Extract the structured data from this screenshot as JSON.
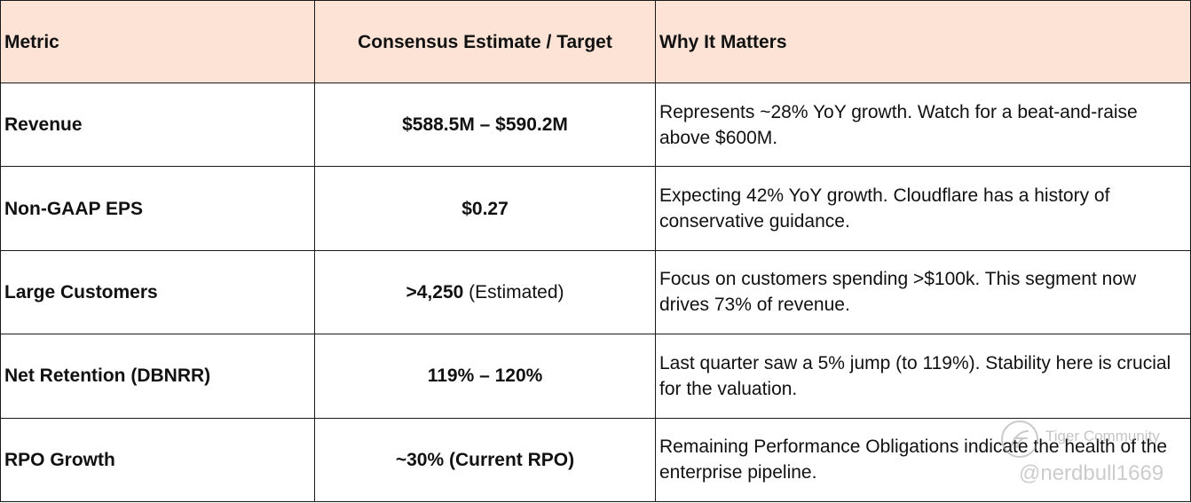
{
  "table": {
    "headers": [
      "Metric",
      "Consensus Estimate / Target",
      "Why It Matters"
    ],
    "rows": [
      {
        "metric": "Revenue",
        "estimate": "$588.5M – $590.2M",
        "estimate_note": "",
        "why": "Represents ~28% YoY growth. Watch for a beat-and-raise above $600M."
      },
      {
        "metric": "Non-GAAP EPS",
        "estimate": "$0.27",
        "estimate_note": "",
        "why": "Expecting 42% YoY growth. Cloudflare has a history of conservative guidance."
      },
      {
        "metric": "Large Customers",
        "estimate": ">4,250",
        "estimate_note": " (Estimated)",
        "why": "Focus on customers spending >$100k. This segment now drives 73% of revenue."
      },
      {
        "metric": "Net Retention (DBNRR)",
        "estimate": "119% – 120%",
        "estimate_note": "",
        "why": "Last quarter saw a 5% jump (to 119%). Stability here is crucial for the valuation."
      },
      {
        "metric": "RPO Growth",
        "estimate": "~30% (Current RPO)",
        "estimate_note": "",
        "why": "Remaining Performance Obligations indicate the health of the enterprise pipeline."
      }
    ]
  },
  "watermark": {
    "brand": "Tiger Community",
    "user": "@nerdbull1669",
    "icon": "tiger-logo-icon"
  },
  "colors": {
    "header_bg": "#fde3d6",
    "border": "#1a1a1a"
  }
}
